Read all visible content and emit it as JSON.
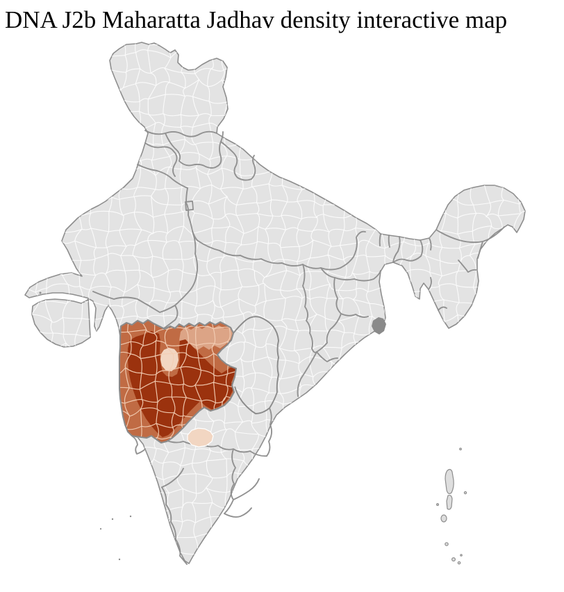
{
  "title": "DNA J2b Maharatta Jadhav density interactive map",
  "map": {
    "background_color": "#ffffff",
    "land_color": "#e3e3e3",
    "district_line_color": "#ffffff",
    "state_line_color": "#8d8d8d",
    "coast_line_color": "#8d8d8d",
    "sundarbans_color": "#8a8a8a",
    "island_color": "#dedede",
    "highlight": {
      "district_line_color": "#f2cdb4",
      "border_color": "#8a8a8a",
      "levels": [
        {
          "id": "density-very-high",
          "color": "#9b320e"
        },
        {
          "id": "density-high",
          "color": "#c06b44"
        },
        {
          "id": "density-medium",
          "color": "#dca486"
        },
        {
          "id": "density-low",
          "color": "#f2d6c2"
        }
      ]
    }
  }
}
